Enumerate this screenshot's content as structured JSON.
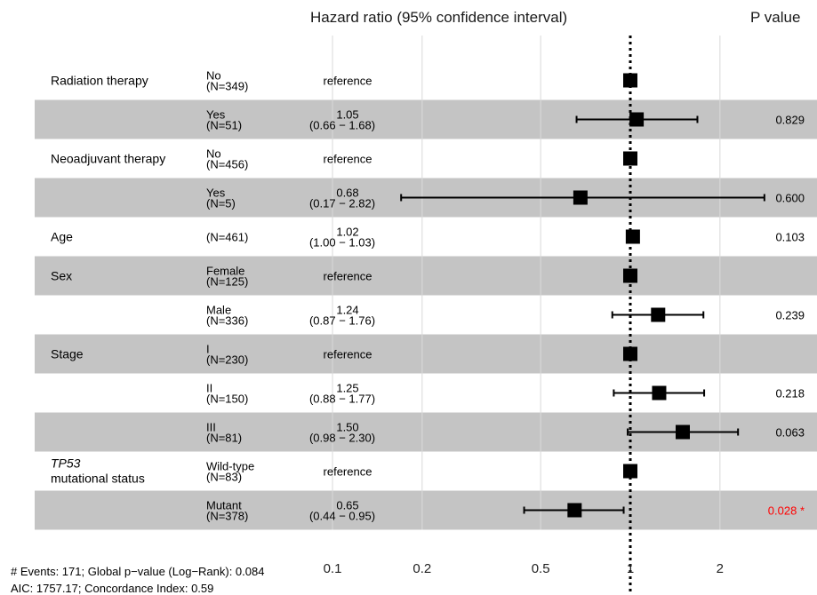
{
  "header": {
    "hr_title": "Hazard ratio (95% confidence interval)",
    "p_title": "P value"
  },
  "footer": {
    "line1": "# Events: 171; Global p−value (Log−Rank): 0.084",
    "line2": "AIC: 1757.17; Concordance Index: 0.59"
  },
  "colors": {
    "shade": "#c4c4c4",
    "significant": "#ff0000",
    "marker": "#000000"
  },
  "chart_data": {
    "type": "forest",
    "x_scale": "log",
    "xlim": [
      0.08,
      2.9
    ],
    "x_ticks": [
      0.1,
      0.2,
      0.5,
      1,
      2
    ],
    "x_tick_labels": [
      "0.1",
      "0.2",
      "0.5",
      "1",
      "2"
    ],
    "reference_line": 1,
    "rows": [
      {
        "var": "Radiation therapy",
        "level": "No",
        "n": "(N=349)",
        "est": "reference",
        "hr": 1,
        "p": ""
      },
      {
        "var": "",
        "level": "Yes",
        "n": "(N=51)",
        "est": "1.05",
        "ci": "(0.66 − 1.68)",
        "hr": 1.05,
        "lo": 0.66,
        "hi": 1.68,
        "p": "0.829"
      },
      {
        "var": "Neoadjuvant therapy",
        "level": "No",
        "n": "(N=456)",
        "est": "reference",
        "hr": 1,
        "p": ""
      },
      {
        "var": "",
        "level": "Yes",
        "n": "(N=5)",
        "est": "0.68",
        "ci": "(0.17 − 2.82)",
        "hr": 0.68,
        "lo": 0.17,
        "hi": 2.82,
        "p": "0.600"
      },
      {
        "var": "Age",
        "level": "",
        "n": "(N=461)",
        "est": "1.02",
        "ci": "(1.00 − 1.03)",
        "hr": 1.02,
        "lo": 1.0,
        "hi": 1.03,
        "p": "0.103"
      },
      {
        "var": "Sex",
        "level": "Female",
        "n": "(N=125)",
        "est": "reference",
        "hr": 1,
        "p": ""
      },
      {
        "var": "",
        "level": "Male",
        "n": "(N=336)",
        "est": "1.24",
        "ci": "(0.87 − 1.76)",
        "hr": 1.24,
        "lo": 0.87,
        "hi": 1.76,
        "p": "0.239"
      },
      {
        "var": "Stage",
        "level": "I",
        "n": "(N=230)",
        "est": "reference",
        "hr": 1,
        "p": ""
      },
      {
        "var": "",
        "level": "II",
        "n": "(N=150)",
        "est": "1.25",
        "ci": "(0.88 − 1.77)",
        "hr": 1.25,
        "lo": 0.88,
        "hi": 1.77,
        "p": "0.218"
      },
      {
        "var": "",
        "level": "III",
        "n": "(N=81)",
        "est": "1.50",
        "ci": "(0.98 − 2.30)",
        "hr": 1.5,
        "lo": 0.98,
        "hi": 2.3,
        "p": "0.063"
      },
      {
        "var": "TP53",
        "var2": "mutational status",
        "var_italic": true,
        "level": "Wild-type",
        "n": "(N=83)",
        "est": "reference",
        "hr": 1,
        "p": ""
      },
      {
        "var": "",
        "level": "Mutant",
        "n": "(N=378)",
        "est": "0.65",
        "ci": "(0.44 − 0.95)",
        "hr": 0.65,
        "lo": 0.44,
        "hi": 0.95,
        "p": "0.028 *",
        "significant": true
      }
    ]
  }
}
